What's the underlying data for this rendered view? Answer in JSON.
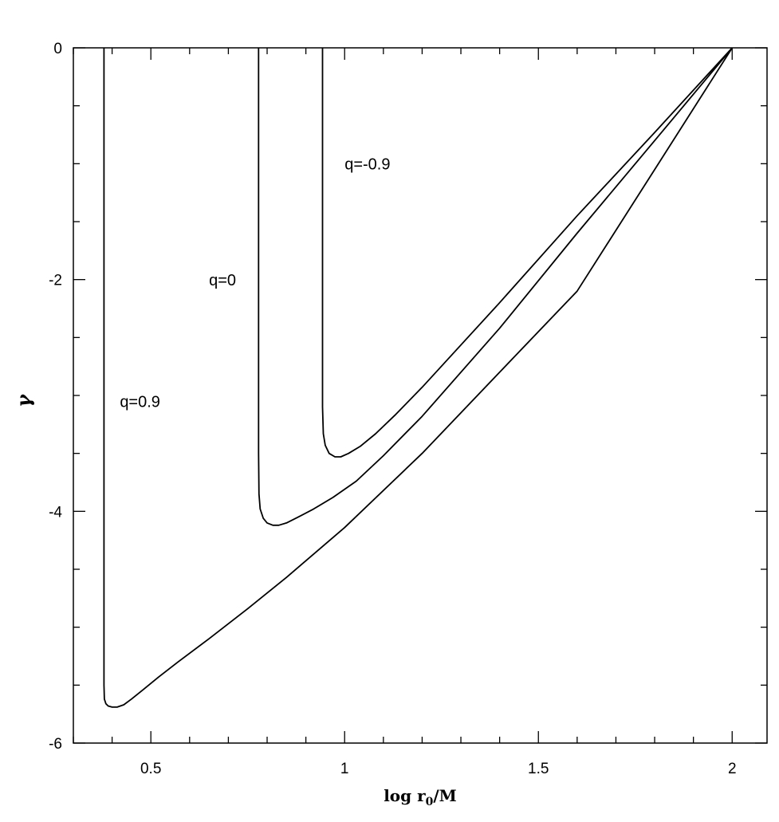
{
  "chart_data": {
    "type": "line",
    "title": "",
    "xlabel": "log r",
    "xlabel_sub": "0",
    "xlabel_suffix": "/M",
    "ylabel": "γ",
    "xlim": [
      0.3,
      2.09
    ],
    "ylim": [
      -6,
      0
    ],
    "x_ticks": [
      0.5,
      1,
      1.5,
      2
    ],
    "x_tick_labels": [
      "0.5",
      "1",
      "1.5",
      "2"
    ],
    "y_ticks": [
      0,
      -2,
      -4,
      -6
    ],
    "y_tick_labels": [
      "0",
      "-2",
      "-4",
      "-6"
    ],
    "grid": false,
    "legend": "none",
    "series": [
      {
        "name": "q=0.9",
        "x": [
          0.379,
          0.379,
          0.379,
          0.38,
          0.384,
          0.39,
          0.4,
          0.413,
          0.43,
          0.45,
          0.48,
          0.52,
          0.57,
          0.65,
          0.75,
          0.85,
          1.0,
          1.2,
          1.4,
          1.6,
          1.8,
          2.0
        ],
        "y": [
          0.0,
          -3.0,
          -5.5,
          -5.62,
          -5.66,
          -5.68,
          -5.69,
          -5.69,
          -5.67,
          -5.62,
          -5.54,
          -5.43,
          -5.3,
          -5.1,
          -4.84,
          -4.57,
          -4.14,
          -3.5,
          -2.8,
          -2.1,
          -1.05,
          0.0
        ]
      },
      {
        "name": "q=0",
        "x": [
          0.778,
          0.778,
          0.778,
          0.779,
          0.782,
          0.79,
          0.8,
          0.815,
          0.83,
          0.85,
          0.88,
          0.92,
          0.97,
          1.03,
          1.1,
          1.2,
          1.4,
          1.6,
          1.8,
          2.0
        ],
        "y": [
          0.0,
          -2.0,
          -3.5,
          -3.85,
          -3.98,
          -4.06,
          -4.1,
          -4.12,
          -4.12,
          -4.1,
          -4.05,
          -3.98,
          -3.88,
          -3.74,
          -3.52,
          -3.18,
          -2.42,
          -1.6,
          -0.8,
          0.0
        ]
      },
      {
        "name": "q=-0.9",
        "x": [
          0.943,
          0.943,
          0.943,
          0.945,
          0.95,
          0.96,
          0.975,
          0.99,
          1.01,
          1.04,
          1.08,
          1.13,
          1.2,
          1.4,
          1.6,
          1.8,
          2.0
        ],
        "y": [
          0.0,
          -2.0,
          -3.1,
          -3.33,
          -3.43,
          -3.5,
          -3.53,
          -3.53,
          -3.5,
          -3.44,
          -3.33,
          -3.17,
          -2.93,
          -2.2,
          -1.45,
          -0.73,
          0.0
        ]
      }
    ],
    "annotations": [
      {
        "text": "q=-0.9",
        "x": 1.0,
        "y": -1.05
      },
      {
        "text": "q=0",
        "x": 0.65,
        "y": -2.05
      },
      {
        "text": "q=0.9",
        "x": 0.42,
        "y": -3.1
      }
    ]
  }
}
